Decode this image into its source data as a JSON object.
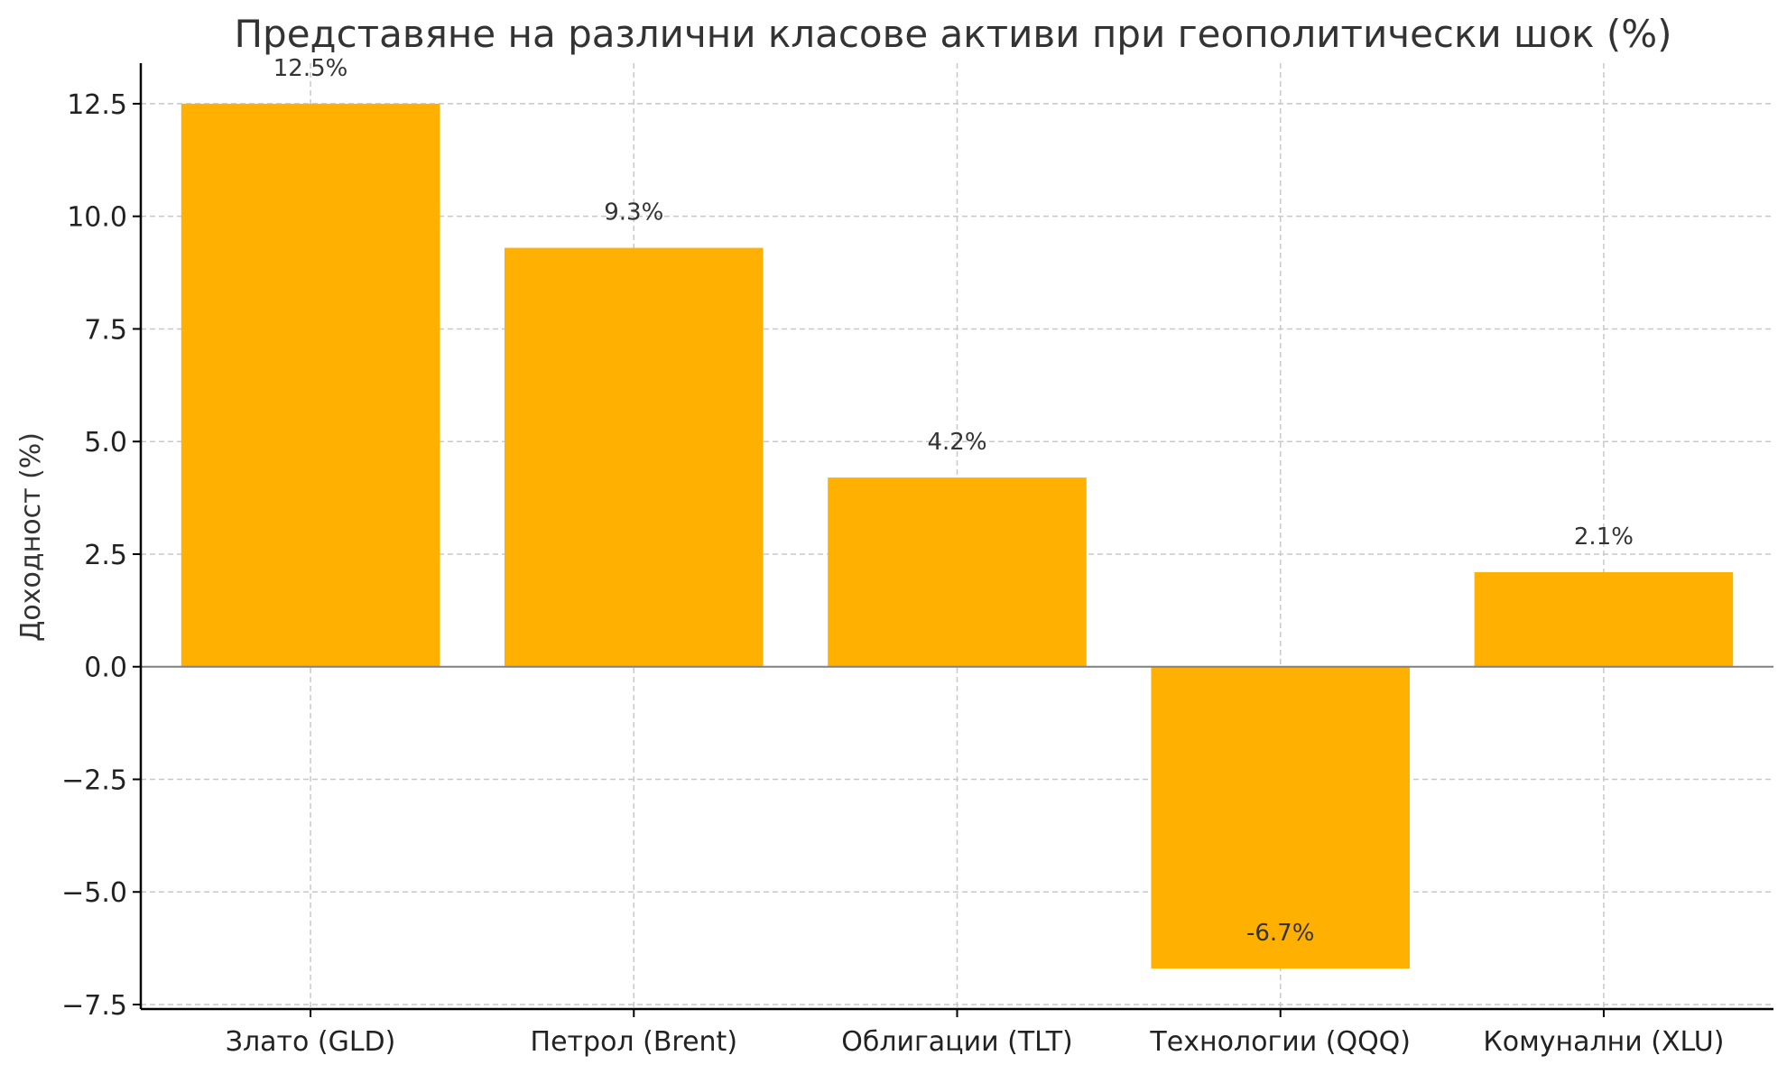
{
  "chart_data": {
    "type": "bar",
    "title": "Представяне на различни класове активи при геополитически шок (%)",
    "xlabel": "",
    "ylabel": "Доходност (%)",
    "categories": [
      "Злато (GLD)",
      "Петрол (Brent)",
      "Облигации (TLT)",
      "Технологии (QQQ)",
      "Комунални (XLU)"
    ],
    "values": [
      12.5,
      9.3,
      4.2,
      -6.7,
      2.1
    ],
    "data_labels": [
      "12.5%",
      "9.3%",
      "4.2%",
      "-6.7%",
      "2.1%"
    ],
    "ylim": [
      -7.6,
      13.4
    ],
    "yticks": [
      -7.5,
      -5.0,
      -2.5,
      0.0,
      2.5,
      5.0,
      7.5,
      10.0,
      12.5
    ],
    "ytick_labels": [
      "−7.5",
      "−5.0",
      "−2.5",
      "0.0",
      "2.5",
      "5.0",
      "7.5",
      "10.0",
      "12.5"
    ],
    "grid": true,
    "bar_color": "#FFB000",
    "zero_line_color": "#808080"
  }
}
